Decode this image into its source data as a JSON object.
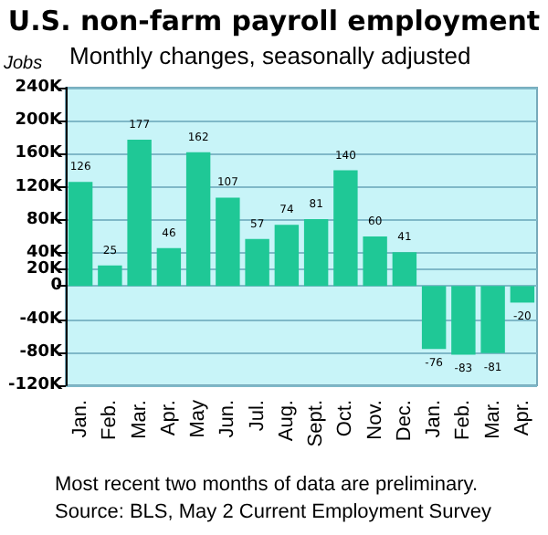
{
  "chart_data": {
    "type": "bar",
    "title": "U.S. non-farm payroll employment",
    "subtitle": "Monthly changes, seasonally adjusted",
    "ylabel": "Jobs",
    "categories": [
      "Jan.",
      "Feb.",
      "Mar.",
      "Apr.",
      "May",
      "Jun.",
      "Jul.",
      "Aug.",
      "Sept.",
      "Oct.",
      "Nov.",
      "Dec.",
      "Jan.",
      "Feb.",
      "Mar.",
      "Apr."
    ],
    "values": [
      126,
      25,
      177,
      46,
      162,
      107,
      57,
      74,
      81,
      140,
      60,
      41,
      -76,
      -83,
      -81,
      -20
    ],
    "color": "#1fc896",
    "data_labels": true,
    "ylim": [
      -120,
      240
    ],
    "yticks": [
      {
        "value": -120,
        "label": "-120K"
      },
      {
        "value": -80,
        "label": "-80K"
      },
      {
        "value": -40,
        "label": "-40K"
      },
      {
        "value": 0,
        "label": "0"
      },
      {
        "value": 20,
        "label": "20K"
      },
      {
        "value": 40,
        "label": "40K"
      },
      {
        "value": 80,
        "label": "80K"
      },
      {
        "value": 120,
        "label": "120K"
      },
      {
        "value": 160,
        "label": "160K"
      },
      {
        "value": 200,
        "label": "200K"
      },
      {
        "value": 240,
        "label": "240K"
      }
    ],
    "grid": "y",
    "annotations": [
      "Most recent two months of data are preliminary.",
      "Source: BLS, May 2 Current Employment Survey"
    ]
  }
}
